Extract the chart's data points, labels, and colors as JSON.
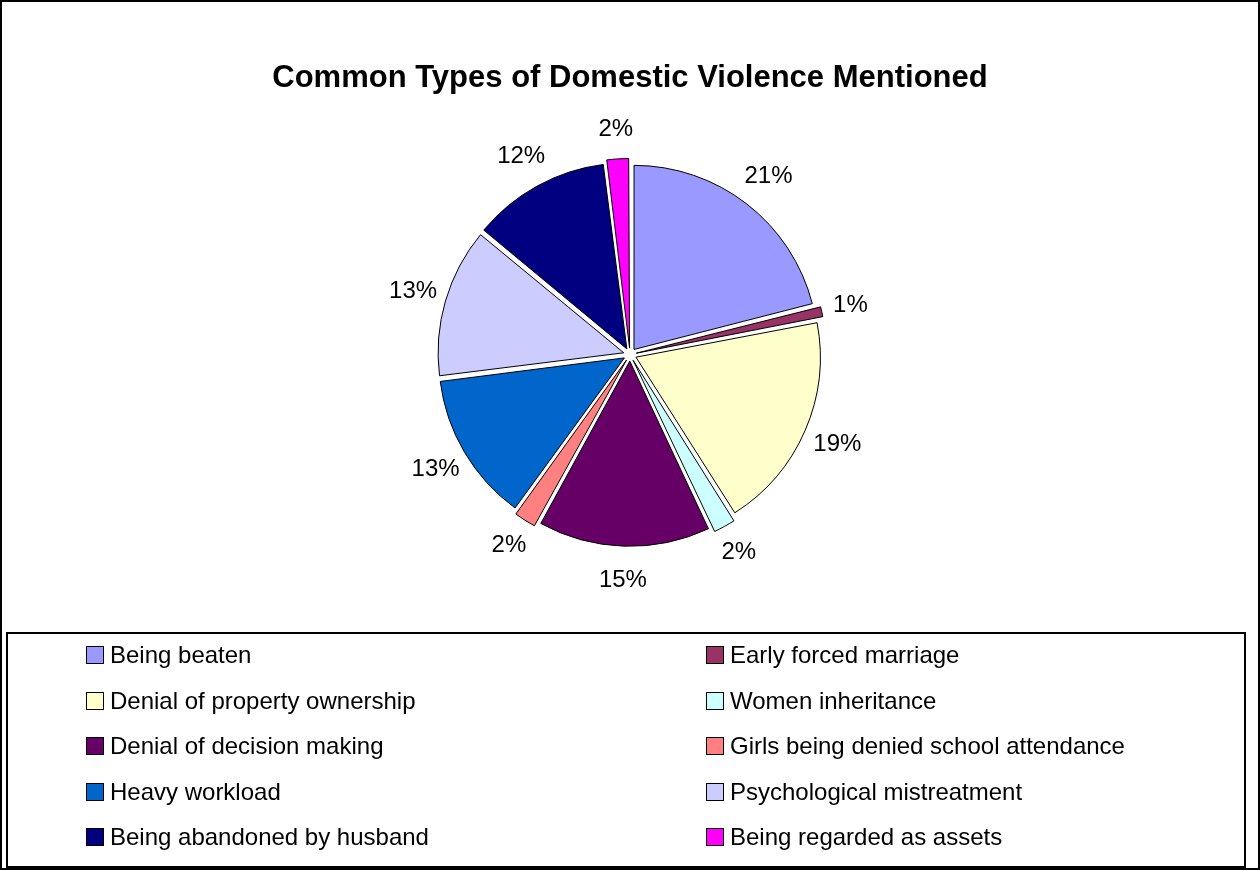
{
  "chart_data": {
    "type": "pie",
    "title": "Common Types of Domestic Violence Mentioned",
    "categories": [
      "Being beaten",
      "Early forced marriage",
      "Denial of property ownership",
      "Women inheritance",
      "Denial of decision making",
      "Girls being denied school attendance",
      "Heavy workload",
      "Psychological mistreatment",
      "Being abandoned by husband",
      "Being regarded as assets"
    ],
    "values": [
      21,
      1,
      19,
      2,
      15,
      2,
      13,
      13,
      12,
      2
    ],
    "colors": [
      "#9999ff",
      "#993366",
      "#ffffcc",
      "#ccffff",
      "#660066",
      "#ff8080",
      "#0066cc",
      "#ccccff",
      "#000080",
      "#ff00ff"
    ],
    "value_labels": [
      "21%",
      "1%",
      "19%",
      "2%",
      "15%",
      "2%",
      "13%",
      "13%",
      "12%",
      "2%"
    ],
    "legend": "bottom"
  }
}
